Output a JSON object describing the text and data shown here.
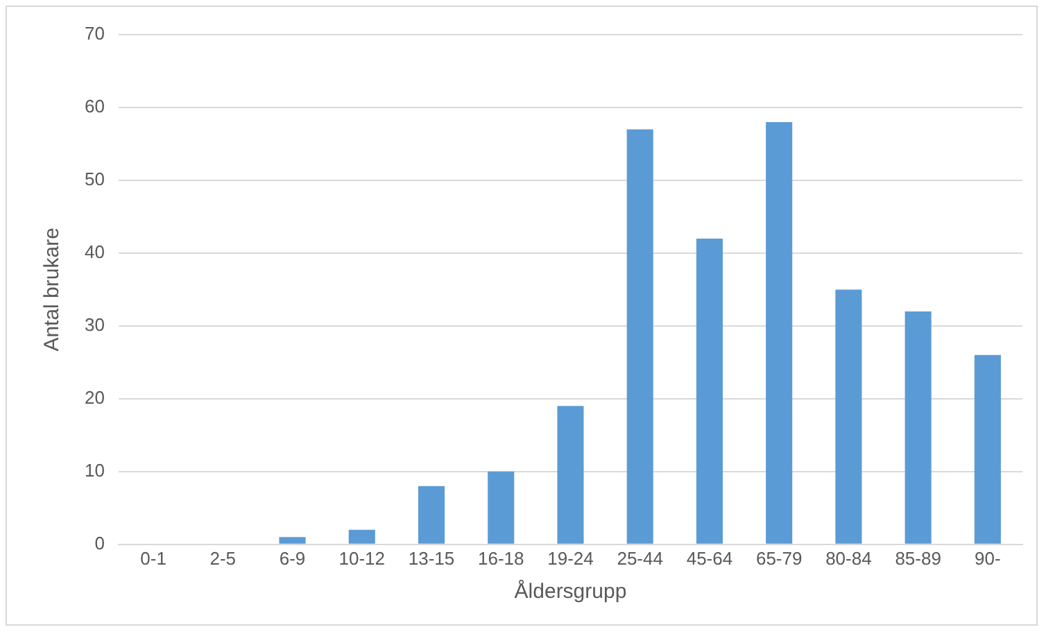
{
  "chart_data": {
    "type": "bar",
    "xlabel": "Åldersgrupp",
    "ylabel": "Antal brukare",
    "categories": [
      "0-1",
      "2-5",
      "6-9",
      "10-12",
      "13-15",
      "16-18",
      "19-24",
      "25-44",
      "45-64",
      "65-79",
      "80-84",
      "85-89",
      "90-"
    ],
    "values": [
      0,
      0,
      1,
      2,
      8,
      10,
      19,
      57,
      42,
      58,
      35,
      32,
      26
    ],
    "color": "#5b9bd5",
    "ylim": [
      0,
      70
    ],
    "yticks": [
      0,
      10,
      20,
      30,
      40,
      50,
      60,
      70
    ],
    "grid": "y",
    "legend": false
  }
}
